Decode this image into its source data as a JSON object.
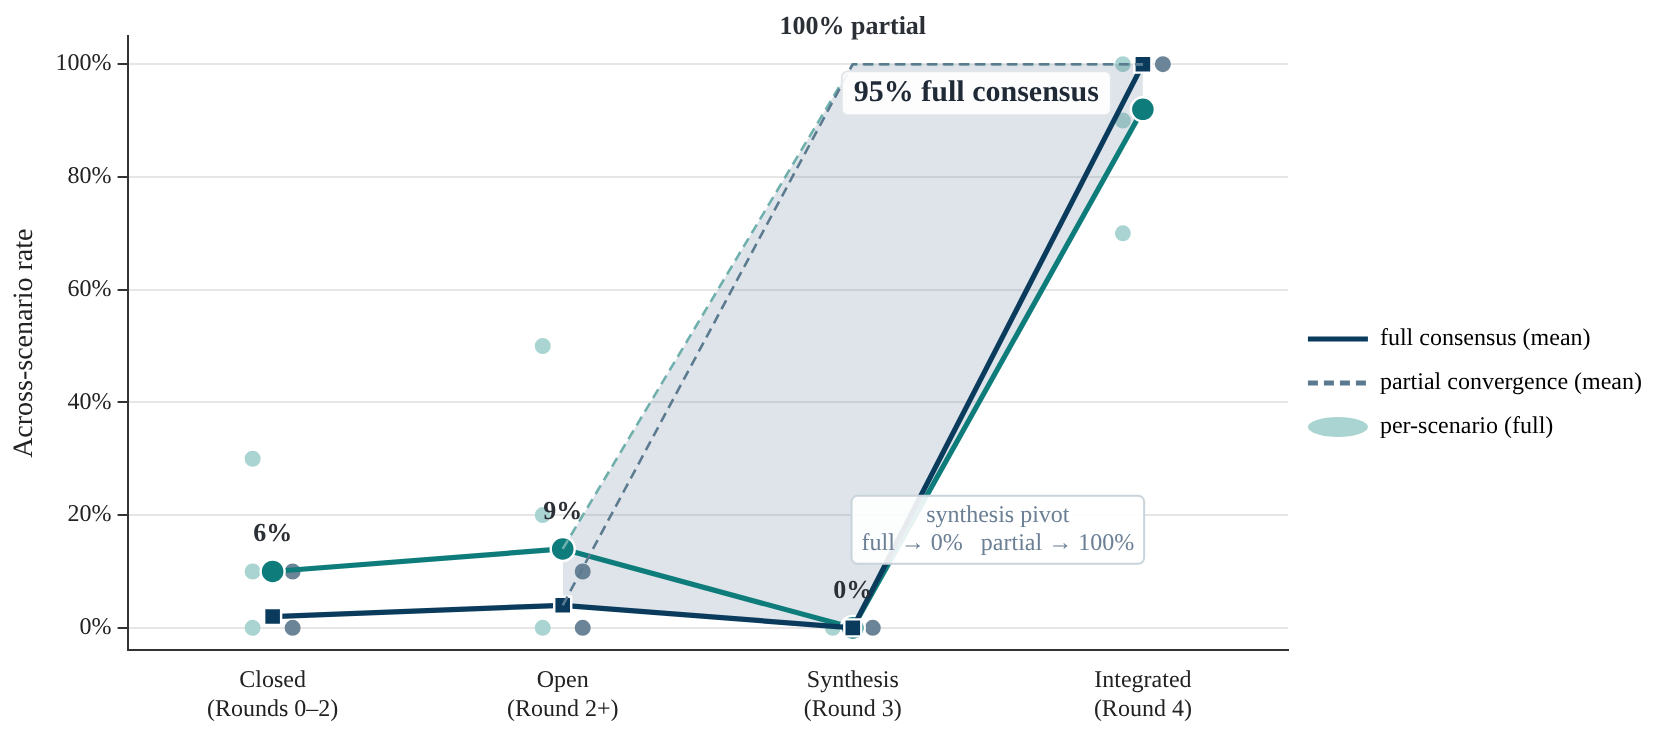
{
  "chart_data": {
    "type": "line",
    "ylabel": "Across-scenario rate",
    "categories": [
      "Closed\n(Rounds 0–2)",
      "Open\n(Round 2+)",
      "Synthesis\n(Round 3)",
      "Integrated\n(Round 4)"
    ],
    "series": [
      {
        "type": "line",
        "color": "#0e7c7b",
        "marker": "circle",
        "values": [
          10,
          14,
          0,
          92
        ]
      },
      {
        "type": "line",
        "name": "full consensus (mean)",
        "color": "#0b3b5c",
        "marker": "square",
        "values": [
          2,
          4,
          0,
          100
        ]
      },
      {
        "type": "line",
        "color": "#6fb0ad",
        "marker": "none",
        "line_style": "dashed",
        "values": [
          null,
          14,
          100,
          100
        ]
      },
      {
        "type": "line",
        "name": "partial convergence (mean)",
        "color": "#5b7a90",
        "marker": "none",
        "line_style": "dashed",
        "values": [
          null,
          4,
          100,
          100
        ],
        "lower": [
          null,
          4,
          0,
          92
        ],
        "upper": [
          null,
          14,
          100,
          100
        ]
      },
      {
        "type": "scatter",
        "name": "per-scenario (full)",
        "color": "#a9d4d1",
        "marker": "circle",
        "x": [
          "Closed\n(Rounds 0–2)",
          "Closed\n(Rounds 0–2)",
          "Closed\n(Rounds 0–2)",
          "Open\n(Round 2+)",
          "Open\n(Round 2+)",
          "Open\n(Round 2+)",
          "Synthesis\n(Round 3)",
          "Integrated\n(Round 4)",
          "Integrated\n(Round 4)",
          "Integrated\n(Round 4)"
        ],
        "values": [
          30,
          10,
          0,
          50,
          20,
          0,
          0,
          100,
          90,
          70
        ]
      },
      {
        "type": "scatter",
        "color": "#6b8497",
        "marker": "circle",
        "x": [
          "Closed\n(Rounds 0–2)",
          "Closed\n(Rounds 0–2)",
          "Open\n(Round 2+)",
          "Open\n(Round 2+)",
          "Synthesis\n(Round 3)",
          "Integrated\n(Round 4)"
        ],
        "values": [
          10,
          0,
          10,
          0,
          0,
          100
        ]
      }
    ],
    "ylim": [
      -4,
      105
    ],
    "yticks": [
      {
        "value": 0,
        "label": "0%"
      },
      {
        "value": 20,
        "label": "20%"
      },
      {
        "value": 40,
        "label": "40%"
      },
      {
        "value": 60,
        "label": "60%"
      },
      {
        "value": 80,
        "label": "80%"
      },
      {
        "value": 100,
        "label": "100%"
      }
    ],
    "grid": "y",
    "legend": "right",
    "annotations": [
      {
        "text": "6%",
        "x": "Closed\n(Rounds 0–2)",
        "y": 10
      },
      {
        "text": "9%",
        "x": "Open\n(Round 2+)",
        "y": 14
      },
      {
        "text": "0%",
        "x": "Synthesis\n(Round 3)",
        "y": 0
      },
      {
        "text": "100% partial",
        "x": "Synthesis\n(Round 3)",
        "y": 100
      },
      {
        "text": "95% full consensus",
        "x": "Integrated\n(Round 4)",
        "y": 92
      },
      "synthesis pivot\nfull → 0%   partial → 100%"
    ]
  }
}
